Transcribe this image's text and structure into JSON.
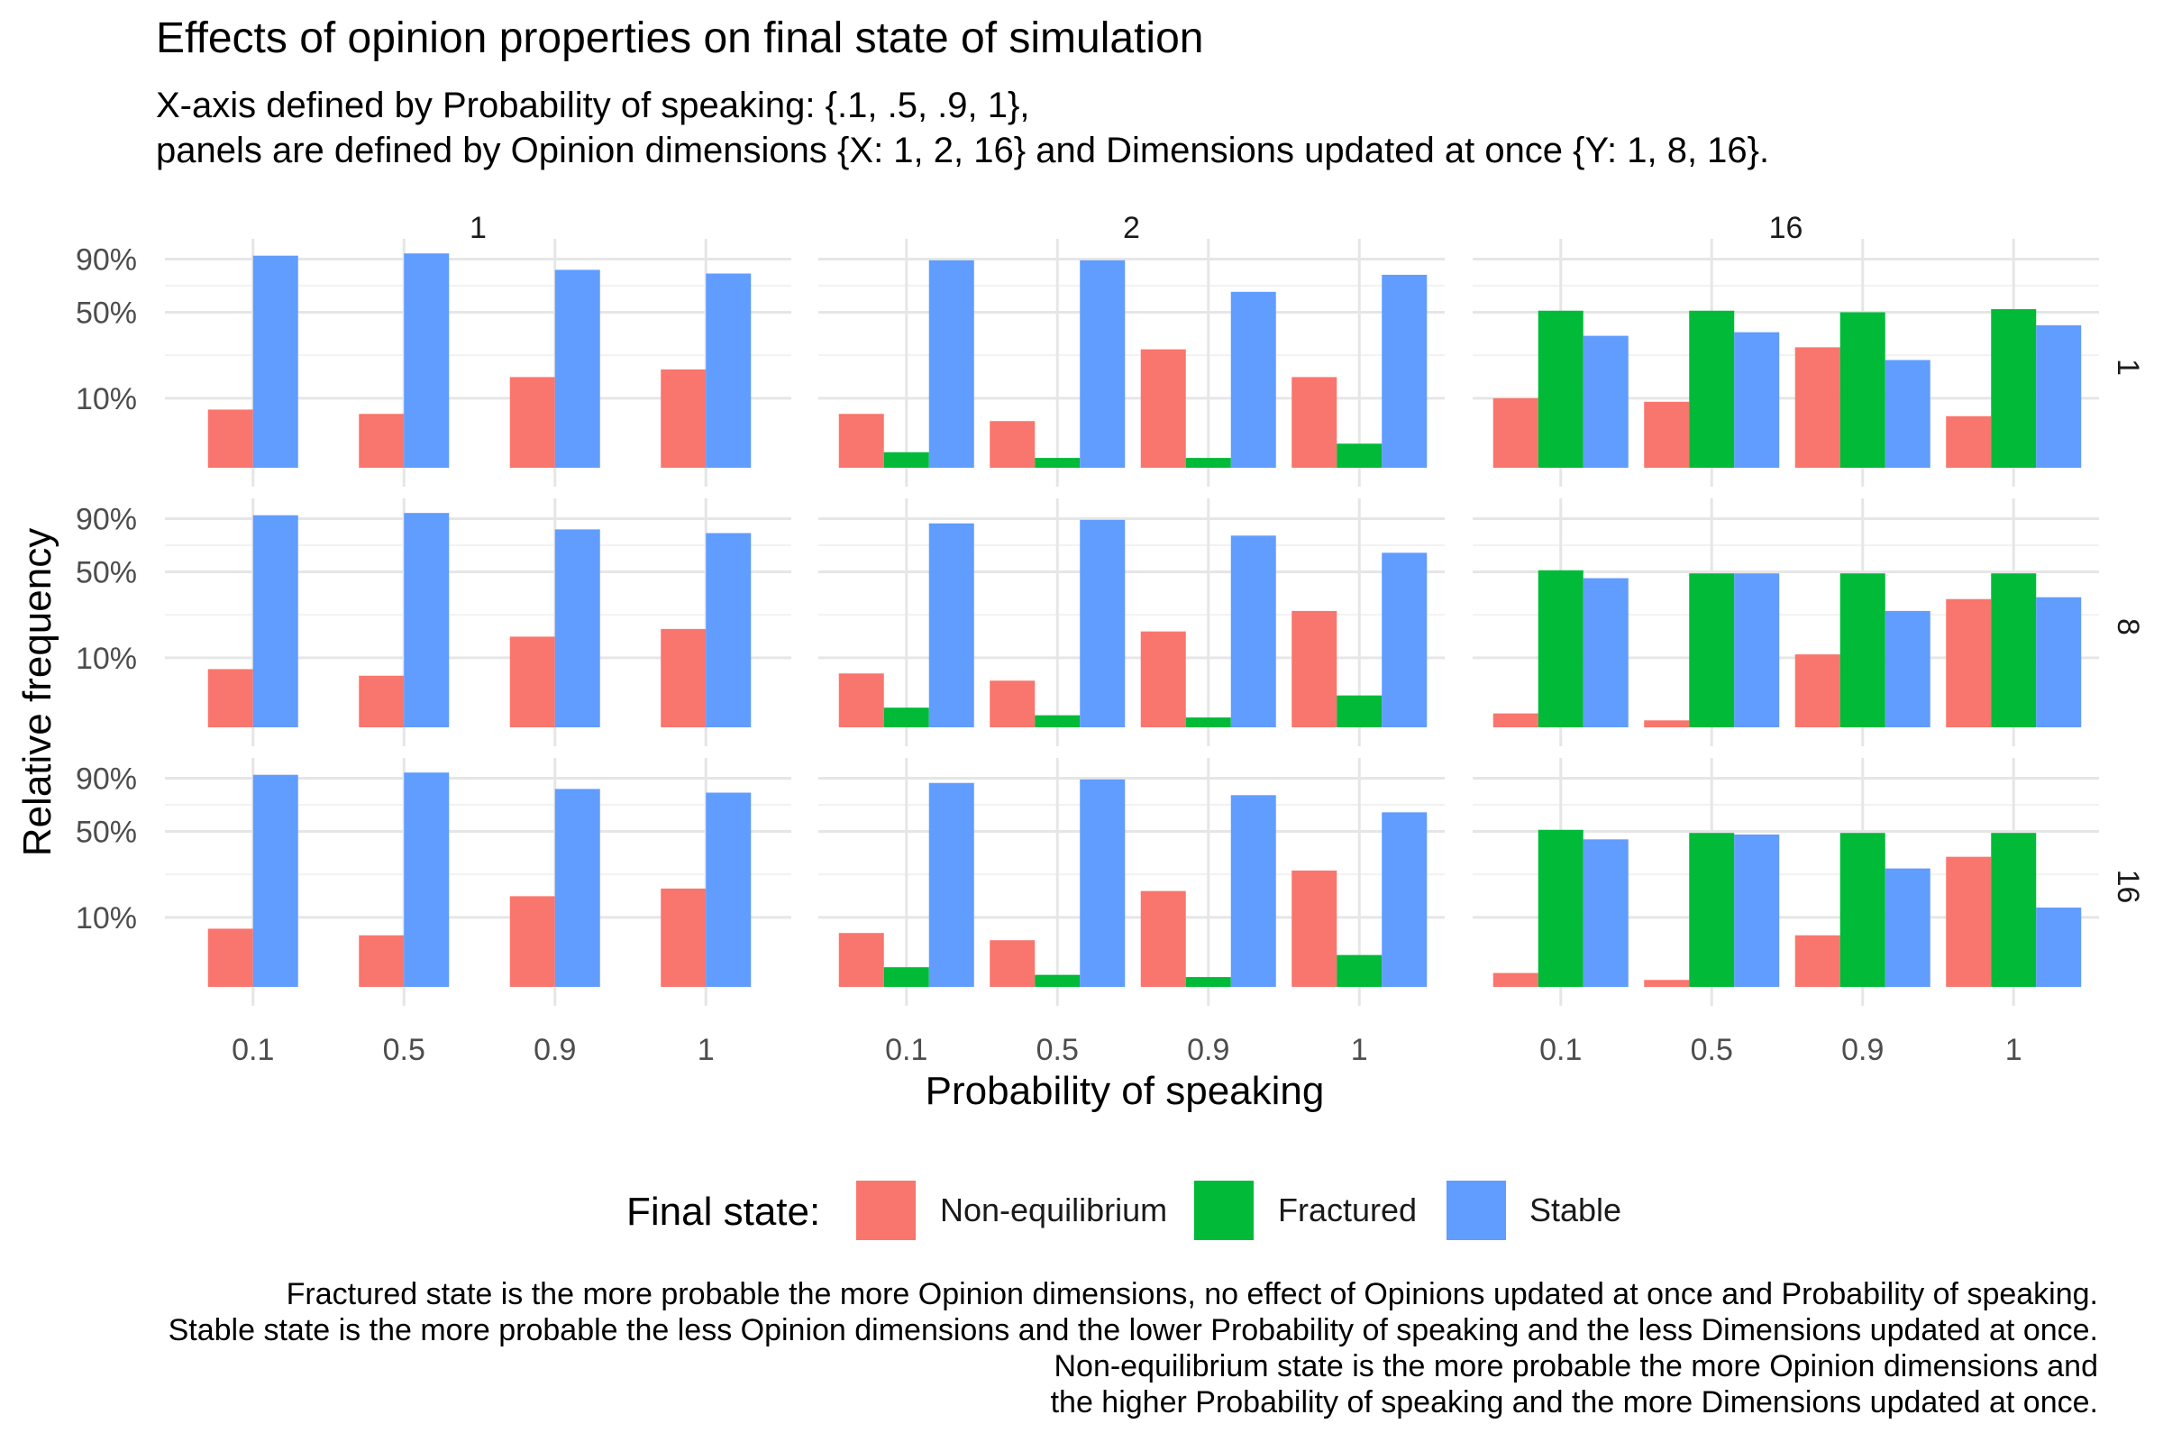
{
  "chart_data": {
    "type": "bar",
    "title": "Effects of opinion properties on final state of simulation",
    "subtitle_lines": [
      "X-axis defined by Probability of speaking: {.1, .5, .9, 1},",
      "panels are defined by Opinion dimensions {X: 1, 2, 16} and Dimensions updated at once {Y: 1, 8, 16}."
    ],
    "xlabel": "Probability of speaking",
    "ylabel": "Relative frequency",
    "y_scale": "sqrt",
    "ylim": [
      0,
      100
    ],
    "y_ticks": [
      10,
      50,
      90
    ],
    "y_tick_labels": [
      "10%",
      "50%",
      "90%"
    ],
    "x_categories": [
      "0.1",
      "0.5",
      "0.9",
      "1"
    ],
    "facet_cols": [
      "1",
      "2",
      "16"
    ],
    "facet_rows": [
      "1",
      "8",
      "16"
    ],
    "legend": {
      "title": "Final state:",
      "position": "bottom",
      "entries": [
        {
          "name": "Non-equilibrium",
          "color": "#F8766D"
        },
        {
          "name": "Fractured",
          "color": "#00BA38"
        },
        {
          "name": "Stable",
          "color": "#619CFF"
        }
      ]
    },
    "caption_lines": [
      "Fractured state is the more probable the more Opinion dimensions, no effect of Opinions updated at once and Probability of speaking.",
      "Stable state is the more probable the less Opinion dimensions and the lower Probability of speaking and the less Dimensions updated at once.",
      "Non-equilibrium state is the more probable the more Opinion dimensions and",
      "the higher Probability of speaking and the more Dimensions updated at once."
    ],
    "panels": [
      {
        "row": "1",
        "col": "1",
        "series": [
          {
            "name": "Non-equilibrium",
            "values": [
              7,
              6,
              17,
              20
            ]
          },
          {
            "name": "Stable",
            "values": [
              93,
              95,
              81,
              78
            ]
          }
        ]
      },
      {
        "row": "1",
        "col": "2",
        "series": [
          {
            "name": "Non-equilibrium",
            "values": [
              6,
              4.5,
              29,
              17
            ]
          },
          {
            "name": "Fractured",
            "values": [
              0.5,
              0.2,
              0.2,
              1.2
            ]
          },
          {
            "name": "Stable",
            "values": [
              89,
              89,
              64,
              77
            ]
          }
        ]
      },
      {
        "row": "1",
        "col": "16",
        "series": [
          {
            "name": "Non-equilibrium",
            "values": [
              10,
              9,
              30,
              5.5
            ]
          },
          {
            "name": "Fractured",
            "values": [
              51,
              51,
              50,
              52
            ]
          },
          {
            "name": "Stable",
            "values": [
              36,
              38,
              24,
              42
            ]
          }
        ]
      },
      {
        "row": "8",
        "col": "1",
        "series": [
          {
            "name": "Non-equilibrium",
            "values": [
              7,
              5.5,
              17,
              20
            ]
          },
          {
            "name": "Stable",
            "values": [
              93,
              95,
              81,
              78
            ]
          }
        ]
      },
      {
        "row": "8",
        "col": "2",
        "series": [
          {
            "name": "Non-equilibrium",
            "values": [
              6,
              4.5,
              19,
              28
            ]
          },
          {
            "name": "Fractured",
            "values": [
              0.8,
              0.3,
              0.2,
              2.1
            ]
          },
          {
            "name": "Stable",
            "values": [
              86,
              89,
              76,
              63
            ]
          }
        ]
      },
      {
        "row": "8",
        "col": "16",
        "series": [
          {
            "name": "Non-equilibrium",
            "values": [
              0.4,
              0.1,
              11,
              34
            ]
          },
          {
            "name": "Fractured",
            "values": [
              51,
              49,
              49,
              49
            ]
          },
          {
            "name": "Stable",
            "values": [
              46,
              49,
              28,
              35
            ]
          }
        ]
      },
      {
        "row": "16",
        "col": "1",
        "series": [
          {
            "name": "Non-equilibrium",
            "values": [
              7,
              5.5,
              17,
              20
            ]
          },
          {
            "name": "Stable",
            "values": [
              93,
              95,
              81,
              78
            ]
          }
        ]
      },
      {
        "row": "16",
        "col": "2",
        "series": [
          {
            "name": "Non-equilibrium",
            "values": [
              6,
              4.5,
              19,
              28
            ]
          },
          {
            "name": "Fractured",
            "values": [
              0.8,
              0.3,
              0.2,
              2.1
            ]
          },
          {
            "name": "Stable",
            "values": [
              86,
              89,
              76,
              63
            ]
          }
        ]
      },
      {
        "row": "16",
        "col": "16",
        "series": [
          {
            "name": "Non-equilibrium",
            "values": [
              0.4,
              0.1,
              5.5,
              35
            ]
          },
          {
            "name": "Fractured",
            "values": [
              51,
              49,
              49,
              49
            ]
          },
          {
            "name": "Stable",
            "values": [
              45,
              48,
              29,
              13
            ]
          }
        ]
      }
    ]
  }
}
